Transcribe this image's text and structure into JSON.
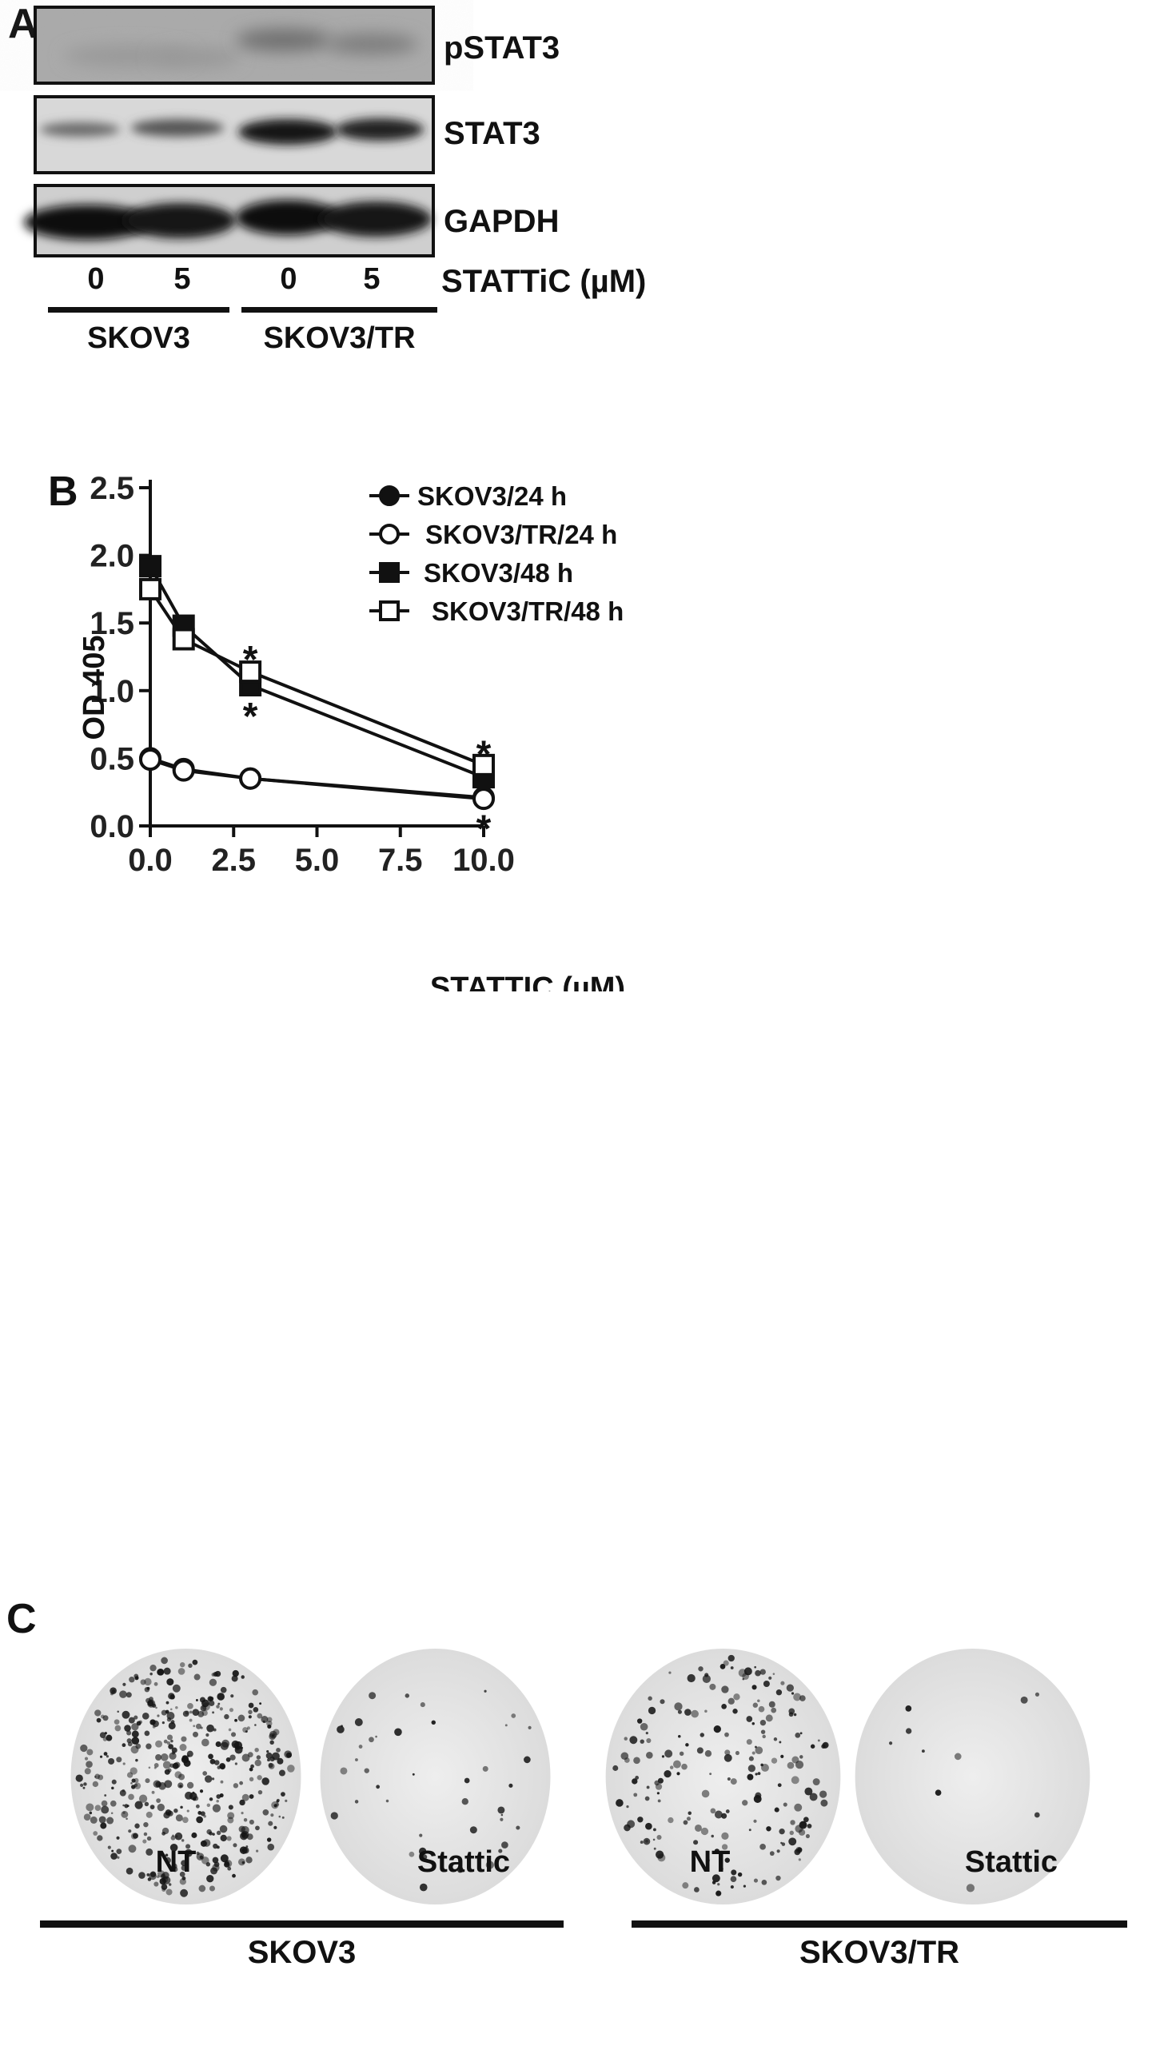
{
  "panel_a": {
    "label": "A",
    "blots": [
      {
        "name": "pSTAT3"
      },
      {
        "name": "STAT3"
      },
      {
        "name": "GAPDH"
      }
    ],
    "lanes": [
      "0",
      "5",
      "0",
      "5"
    ],
    "treatment_label": "STATTiC (µM)",
    "groups": [
      "SKOV3",
      "SKOV3/TR"
    ]
  },
  "panel_b": {
    "label": "B",
    "chart_data": {
      "type": "line",
      "xlabel": "STATTIC (µM)",
      "ylabel": "OD 405",
      "xlim": [
        0,
        10
      ],
      "ylim": [
        0,
        2.5
      ],
      "x_ticks": [
        "0.0",
        "2.5",
        "5.0",
        "7.5",
        "10.0"
      ],
      "y_ticks": [
        "0.0",
        "0.5",
        "1.0",
        "1.5",
        "2.0",
        "2.5"
      ],
      "x": [
        0,
        1,
        3,
        10
      ],
      "series": [
        {
          "name": "SKOV3/24 h",
          "marker": "filled-circle",
          "values": [
            0.5,
            0.42,
            0.35,
            0.21
          ]
        },
        {
          "name": "SKOV3/TR/24 h",
          "marker": "open-circle",
          "values": [
            0.49,
            0.41,
            0.35,
            0.2
          ]
        },
        {
          "name": "SKOV3/48 h",
          "marker": "filled-square",
          "values": [
            1.92,
            1.48,
            1.04,
            0.36
          ]
        },
        {
          "name": "SKOV3/TR/48 h",
          "marker": "open-square",
          "values": [
            1.75,
            1.38,
            1.14,
            0.45
          ]
        }
      ],
      "annotations": [
        {
          "text": "*",
          "x": 3,
          "y": 1.3
        },
        {
          "text": "*",
          "x": 3,
          "y": 0.88
        },
        {
          "text": "*",
          "x": 10,
          "y": 0.6
        },
        {
          "text": "*",
          "x": 10,
          "y": 0.05
        }
      ],
      "grid": false,
      "legend": "top-right"
    }
  },
  "panel_c": {
    "label": "C",
    "wells": [
      {
        "label": "NT",
        "density": 0.85
      },
      {
        "label": "Stattic",
        "density": 0.08
      },
      {
        "label": "NT",
        "density": 0.4
      },
      {
        "label": "Stattic",
        "density": 0.02
      }
    ],
    "groups": [
      "SKOV3",
      "SKOV3/TR"
    ]
  }
}
